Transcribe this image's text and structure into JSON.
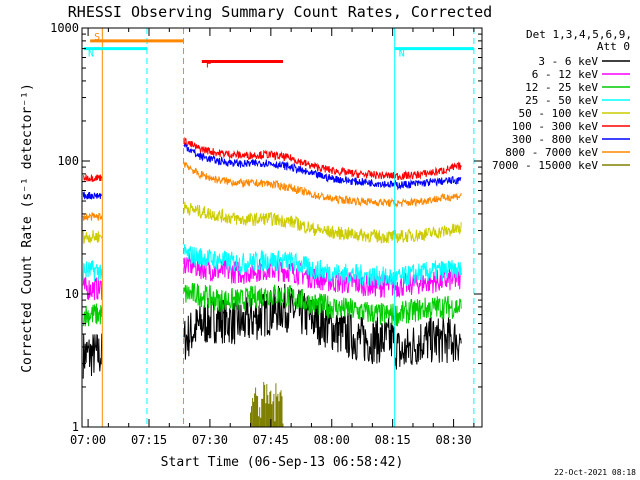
{
  "chart_data": {
    "type": "line",
    "title": "RHESSI Observing Summary Count Rates, Corrected",
    "xlabel": "Start Time (06-Sep-13 06:58:42)",
    "ylabel": "Corrected Count Rate (s⁻¹ detector⁻¹)",
    "yscale": "log",
    "ylim": [
      1,
      1000
    ],
    "xlim_minutes": [
      -1.5,
      97
    ],
    "xticks": [
      {
        "label": "07:00",
        "t": 0
      },
      {
        "label": "07:15",
        "t": 15
      },
      {
        "label": "07:30",
        "t": 30
      },
      {
        "label": "07:45",
        "t": 45
      },
      {
        "label": "08:00",
        "t": 60
      },
      {
        "label": "08:15",
        "t": 75
      },
      {
        "label": "08:30",
        "t": 90
      }
    ],
    "yticks": [
      {
        "label": "1",
        "v": 1
      },
      {
        "label": "10",
        "v": 10
      },
      {
        "label": "100",
        "v": 100
      },
      {
        "label": "1000",
        "v": 1000
      }
    ],
    "legend_header": [
      "Det 1,3,4,5,6,9,",
      "Att 0"
    ],
    "series": [
      {
        "name": "3 - 6 keV",
        "color": "#000000",
        "points": [
          [
            -2,
            3.5
          ],
          [
            3,
            3.5
          ],
          [
            22,
            4
          ],
          [
            25,
            5
          ],
          [
            28,
            6
          ],
          [
            32,
            6.5
          ],
          [
            38,
            6
          ],
          [
            43,
            7
          ],
          [
            48,
            8
          ],
          [
            53,
            7
          ],
          [
            58,
            6
          ],
          [
            63,
            5
          ],
          [
            68,
            4.5
          ],
          [
            73,
            4.5
          ],
          [
            75,
            4.5
          ],
          [
            77,
            3.5
          ],
          [
            82,
            4.5
          ],
          [
            88,
            4.5
          ],
          [
            92,
            4.5
          ]
        ]
      },
      {
        "name": "6 - 12 keV",
        "color": "#ff00ff",
        "points": [
          [
            -2,
            11
          ],
          [
            3,
            11
          ],
          [
            24,
            17
          ],
          [
            27,
            16
          ],
          [
            32,
            15
          ],
          [
            38,
            14.5
          ],
          [
            44,
            15.5
          ],
          [
            50,
            15
          ],
          [
            55,
            13.5
          ],
          [
            60,
            12.5
          ],
          [
            66,
            12
          ],
          [
            72,
            11.5
          ],
          [
            76,
            11.5
          ],
          [
            80,
            12
          ],
          [
            86,
            12.5
          ],
          [
            92,
            13
          ]
        ]
      },
      {
        "name": "12 - 25 keV",
        "color": "#00cc00",
        "points": [
          [
            -2,
            7
          ],
          [
            3,
            7
          ],
          [
            24,
            10
          ],
          [
            27,
            10
          ],
          [
            32,
            9
          ],
          [
            38,
            9
          ],
          [
            44,
            10
          ],
          [
            50,
            9.5
          ],
          [
            55,
            8.5
          ],
          [
            60,
            8
          ],
          [
            66,
            7.5
          ],
          [
            72,
            7
          ],
          [
            76,
            7
          ],
          [
            80,
            7.5
          ],
          [
            86,
            8
          ],
          [
            92,
            8
          ]
        ]
      },
      {
        "name": "25 - 50 keV",
        "color": "#00ffff",
        "points": [
          [
            -2,
            15
          ],
          [
            3,
            15
          ],
          [
            24,
            20
          ],
          [
            27,
            19
          ],
          [
            32,
            18
          ],
          [
            38,
            17
          ],
          [
            44,
            18
          ],
          [
            50,
            17.5
          ],
          [
            55,
            15.5
          ],
          [
            60,
            14.5
          ],
          [
            66,
            14
          ],
          [
            72,
            13.5
          ],
          [
            76,
            13
          ],
          [
            80,
            14
          ],
          [
            86,
            15
          ],
          [
            92,
            15
          ]
        ]
      },
      {
        "name": "50 - 100 keV",
        "color": "#cccc00",
        "points": [
          [
            -2,
            27
          ],
          [
            3,
            27
          ],
          [
            24,
            45
          ],
          [
            27,
            42
          ],
          [
            32,
            39
          ],
          [
            38,
            36
          ],
          [
            44,
            37
          ],
          [
            50,
            35
          ],
          [
            55,
            31
          ],
          [
            60,
            29
          ],
          [
            66,
            28
          ],
          [
            72,
            27
          ],
          [
            76,
            27
          ],
          [
            80,
            27.5
          ],
          [
            86,
            29
          ],
          [
            92,
            31
          ]
        ]
      },
      {
        "name": "100 - 300 keV",
        "color": "#ff0000",
        "points": [
          [
            -2,
            75
          ],
          [
            3,
            75
          ],
          [
            24,
            140
          ],
          [
            27,
            125
          ],
          [
            32,
            115
          ],
          [
            38,
            110
          ],
          [
            44,
            112
          ],
          [
            50,
            105
          ],
          [
            55,
            92
          ],
          [
            60,
            85
          ],
          [
            66,
            80
          ],
          [
            72,
            78
          ],
          [
            76,
            77
          ],
          [
            80,
            78
          ],
          [
            86,
            83
          ],
          [
            92,
            92
          ]
        ]
      },
      {
        "name": "300 - 800 keV",
        "color": "#0000ff",
        "points": [
          [
            -2,
            55
          ],
          [
            3,
            55
          ],
          [
            24,
            130
          ],
          [
            27,
            110
          ],
          [
            32,
            100
          ],
          [
            38,
            95
          ],
          [
            44,
            97
          ],
          [
            50,
            90
          ],
          [
            55,
            80
          ],
          [
            60,
            74
          ],
          [
            66,
            70
          ],
          [
            72,
            68
          ],
          [
            76,
            66
          ],
          [
            80,
            67
          ],
          [
            86,
            70
          ],
          [
            92,
            72
          ]
        ]
      },
      {
        "name": "800 - 7000 keV",
        "color": "#ff8800",
        "points": [
          [
            -2,
            38
          ],
          [
            3,
            38
          ],
          [
            24,
            95
          ],
          [
            27,
            80
          ],
          [
            32,
            72
          ],
          [
            38,
            68
          ],
          [
            44,
            68
          ],
          [
            50,
            63
          ],
          [
            55,
            56
          ],
          [
            60,
            52
          ],
          [
            66,
            50
          ],
          [
            72,
            49
          ],
          [
            76,
            48
          ],
          [
            80,
            49
          ],
          [
            86,
            52
          ],
          [
            92,
            55
          ]
        ]
      },
      {
        "name": "7000 - 15000 keV",
        "color": "#808000",
        "points": [
          [
            40,
            1
          ],
          [
            41,
            2
          ],
          [
            42,
            1.4
          ],
          [
            43,
            2
          ],
          [
            44,
            1.2
          ],
          [
            45,
            2
          ],
          [
            46,
            1.3
          ],
          [
            47,
            2
          ],
          [
            48,
            1
          ]
        ]
      }
    ],
    "regions": [
      {
        "label": "S",
        "color": "#ff8800",
        "t": [
          0.5,
          23.5
        ],
        "solid_edge_t": 3.5,
        "dashed_edge_t": 23.5,
        "level": 800
      },
      {
        "label": "N",
        "color": "#00ffff",
        "t": [
          -1,
          14.5
        ],
        "level": 700
      },
      {
        "label": "N",
        "color": "#00ffff",
        "t": [
          75.5,
          95
        ],
        "level": 700
      },
      {
        "label": "F",
        "color": "#ff0000",
        "t": [
          28,
          48
        ],
        "level": 560
      }
    ],
    "night_edges": [
      {
        "t": 3.5,
        "color": "#ff8800",
        "style": "solid"
      },
      {
        "t": 14.5,
        "color": "#00ffff",
        "style": "dashed"
      },
      {
        "t": 23.5,
        "color": "#ff8800",
        "style": "dashed"
      },
      {
        "t": 75.5,
        "color": "#00ffff",
        "style": "solid"
      },
      {
        "t": 95,
        "color": "#00ffff",
        "style": "dashed"
      }
    ]
  },
  "footer": {
    "date": "22-Oct-2021 08:18"
  }
}
